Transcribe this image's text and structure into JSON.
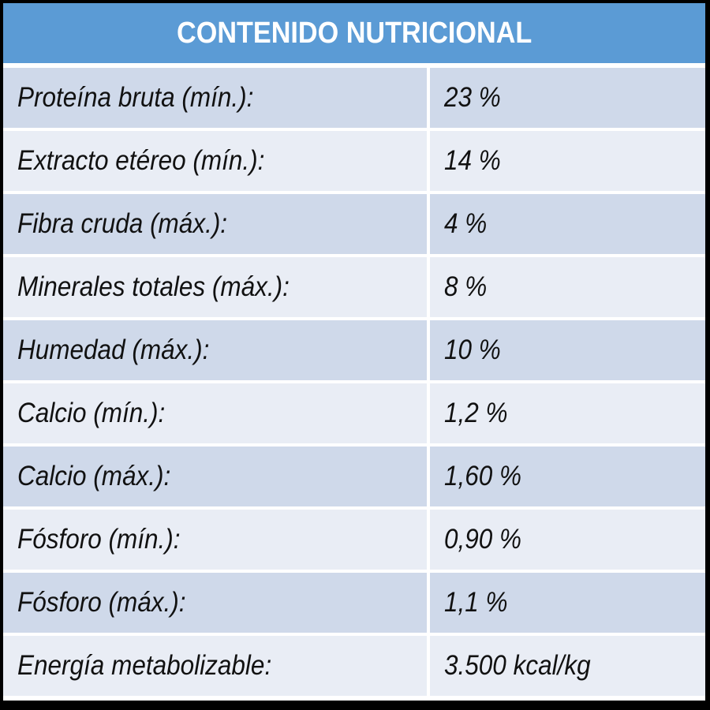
{
  "title": "CONTENIDO NUTRICIONAL",
  "colors": {
    "header": "#5b9bd5",
    "row_dark": "#cfd9ea",
    "row_light": "#e9edf5",
    "border": "#ffffff"
  },
  "rows": [
    {
      "label": "Proteína bruta (mín.):",
      "value": "23 %"
    },
    {
      "label": "Extracto etéreo (mín.):",
      "value": "14 %"
    },
    {
      "label": "Fibra cruda (máx.):",
      "value": "4 %"
    },
    {
      "label": "Minerales totales (máx.):",
      "value": "8 %"
    },
    {
      "label": "Humedad (máx.):",
      "value": "10 %"
    },
    {
      "label": "Calcio (mín.):",
      "value": "1,2 %"
    },
    {
      "label": "Calcio (máx.):",
      "value": "1,60 %"
    },
    {
      "label": "Fósforo (mín.):",
      "value": "0,90 %"
    },
    {
      "label": "Fósforo (máx.):",
      "value": "1,1 %"
    },
    {
      "label": "Energía metabolizable:",
      "value": "3.500 kcal/kg"
    }
  ]
}
